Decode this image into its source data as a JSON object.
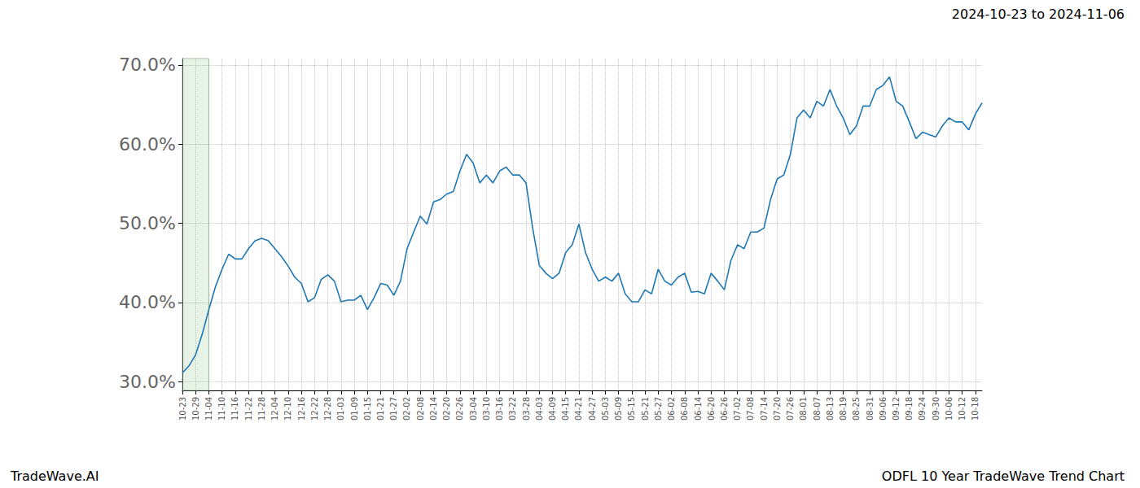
{
  "chart_data": {
    "type": "line",
    "title": "ODFL 10 Year TradeWave Trend Chart",
    "subtitle": "2024-10-23 to 2024-11-06",
    "annotations": [
      "TradeWave.AI"
    ],
    "categories": [
      "10-23",
      null,
      "10-29",
      null,
      "11-04",
      null,
      "11-10",
      null,
      "11-16",
      null,
      "11-22",
      null,
      "11-28",
      null,
      "12-04",
      null,
      "12-10",
      null,
      "12-16",
      null,
      "12-22",
      null,
      "12-28",
      null,
      "01-03",
      null,
      "01-09",
      null,
      "01-15",
      null,
      "01-21",
      null,
      "01-27",
      null,
      "02-02",
      null,
      "02-08",
      null,
      "02-14",
      null,
      "02-20",
      null,
      "02-26",
      null,
      "03-04",
      null,
      "03-10",
      null,
      "03-16",
      null,
      "03-22",
      null,
      "03-28",
      null,
      "04-03",
      null,
      "04-09",
      null,
      "04-15",
      null,
      "04-21",
      null,
      "04-27",
      null,
      "05-03",
      null,
      "05-09",
      null,
      "05-15",
      null,
      "05-21",
      null,
      "05-27",
      null,
      "06-02",
      null,
      "06-08",
      null,
      "06-14",
      null,
      "06-20",
      null,
      "06-26",
      null,
      "07-02",
      null,
      "07-08",
      null,
      "07-14",
      null,
      "07-20",
      null,
      "07-26",
      null,
      "08-01",
      null,
      "08-07",
      null,
      "08-13",
      null,
      "08-19",
      null,
      "08-25",
      null,
      "08-31",
      null,
      "09-06",
      null,
      "09-12",
      null,
      "09-18",
      null,
      "09-24",
      null,
      "09-30",
      null,
      "10-06",
      null,
      "10-12",
      null,
      "10-18",
      null
    ],
    "values": [
      31.1,
      32.0,
      33.4,
      36.0,
      39.1,
      42.0,
      44.2,
      46.1,
      45.5,
      45.5,
      46.8,
      47.8,
      48.1,
      47.8,
      46.8,
      45.8,
      44.6,
      43.2,
      42.4,
      40.1,
      40.6,
      42.9,
      43.5,
      42.7,
      40.1,
      40.3,
      40.3,
      40.9,
      39.1,
      40.6,
      42.4,
      42.2,
      40.9,
      42.7,
      46.8,
      48.9,
      50.9,
      49.9,
      52.7,
      53.0,
      53.7,
      54.0,
      56.6,
      58.7,
      57.6,
      55.1,
      56.1,
      55.1,
      56.6,
      57.1,
      56.1,
      56.1,
      55.1,
      49.4,
      44.7,
      43.7,
      43.0,
      43.7,
      46.3,
      47.3,
      49.9,
      46.3,
      44.2,
      42.7,
      43.2,
      42.7,
      43.7,
      41.1,
      40.1,
      40.1,
      41.6,
      41.1,
      44.2,
      42.7,
      42.2,
      43.2,
      43.7,
      41.3,
      41.4,
      41.1,
      43.7,
      42.7,
      41.6,
      45.3,
      47.3,
      46.8,
      48.9,
      48.9,
      49.4,
      53.0,
      55.6,
      56.1,
      58.7,
      63.3,
      64.3,
      63.3,
      65.4,
      64.8,
      66.9,
      64.8,
      63.3,
      61.2,
      62.3,
      64.8,
      64.8,
      66.9,
      67.4,
      68.5,
      65.4,
      64.8,
      62.8,
      60.7,
      61.5,
      61.2,
      60.9,
      62.3,
      63.3,
      62.8,
      62.8,
      61.8,
      63.8,
      65.2
    ],
    "color": "#1f77b4",
    "highlight": [
      "10-23",
      "11-04"
    ],
    "ylim": [
      28.9,
      70.8
    ],
    "yticks": [
      {
        "value": 30,
        "label": "30.0%"
      },
      {
        "value": 40,
        "label": "40.0%"
      },
      {
        "value": 50,
        "label": "50.0%"
      },
      {
        "value": 60,
        "label": "60.0%"
      },
      {
        "value": 70,
        "label": "70.0%"
      }
    ],
    "grid": true
  }
}
